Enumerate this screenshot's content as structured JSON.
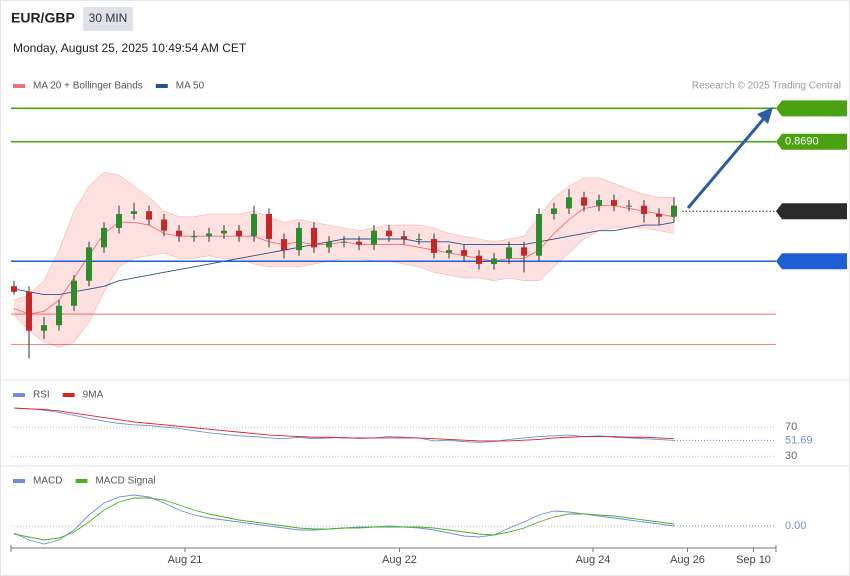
{
  "header": {
    "symbol": "EUR/GBP",
    "timeframe": "30 MIN",
    "datetime": "Monday, August 25, 2025 10:49:54 AM CET"
  },
  "chart_data": [
    {
      "type": "candlestick",
      "annotation": "Research © 2025 Trading Central",
      "up_color": "#2e8b2e",
      "down_color": "#c62828",
      "ylim": [
        0.8605,
        0.8714
      ],
      "open": [
        0.8638,
        0.8636,
        0.8622,
        0.8624,
        0.8631,
        0.864,
        0.8652,
        0.8659,
        0.8664,
        0.8665,
        0.8662,
        0.8658,
        0.8656,
        0.8656,
        0.8657,
        0.8658,
        0.8656,
        0.8664,
        0.8655,
        0.8651,
        0.8659,
        0.8652,
        0.8654,
        0.8654,
        0.8653,
        0.8658,
        0.8656,
        0.8655,
        0.8655,
        0.865,
        0.8651,
        0.8649,
        0.8646,
        0.8648,
        0.8652,
        0.8649,
        0.8664,
        0.8666,
        0.867,
        0.8667,
        0.8669,
        0.8667,
        0.8667,
        0.8664,
        0.8663
      ],
      "high": [
        0.864,
        0.8638,
        0.8627,
        0.8633,
        0.8642,
        0.8654,
        0.8661,
        0.8667,
        0.8668,
        0.8667,
        0.8664,
        0.866,
        0.8658,
        0.8659,
        0.866,
        0.866,
        0.8667,
        0.8666,
        0.8657,
        0.8661,
        0.8661,
        0.8656,
        0.8656,
        0.8656,
        0.866,
        0.866,
        0.8658,
        0.8657,
        0.8657,
        0.8653,
        0.8653,
        0.8651,
        0.865,
        0.8654,
        0.8654,
        0.8666,
        0.8668,
        0.8673,
        0.8672,
        0.8671,
        0.8671,
        0.8669,
        0.8669,
        0.8666,
        0.867
      ],
      "low": [
        0.8635,
        0.8612,
        0.8619,
        0.8622,
        0.8629,
        0.8638,
        0.865,
        0.8657,
        0.8662,
        0.866,
        0.8656,
        0.8654,
        0.8654,
        0.8654,
        0.8655,
        0.8654,
        0.8654,
        0.8652,
        0.8648,
        0.8649,
        0.865,
        0.865,
        0.8652,
        0.8651,
        0.8651,
        0.8654,
        0.8653,
        0.8653,
        0.8648,
        0.8648,
        0.8647,
        0.8644,
        0.8644,
        0.8646,
        0.8643,
        0.8647,
        0.8662,
        0.8664,
        0.8665,
        0.8665,
        0.8665,
        0.8665,
        0.8661,
        0.866,
        0.8661
      ],
      "close": [
        0.8636,
        0.8622,
        0.8624,
        0.8631,
        0.864,
        0.8652,
        0.8659,
        0.8664,
        0.8665,
        0.8662,
        0.8658,
        0.8656,
        0.8656,
        0.8657,
        0.8658,
        0.8656,
        0.8664,
        0.8655,
        0.8651,
        0.8659,
        0.8652,
        0.8654,
        0.8654,
        0.8653,
        0.8658,
        0.8656,
        0.8655,
        0.8655,
        0.865,
        0.8651,
        0.8649,
        0.8646,
        0.8648,
        0.8652,
        0.8649,
        0.8664,
        0.8666,
        0.867,
        0.8667,
        0.8669,
        0.8667,
        0.8667,
        0.8664,
        0.8663,
        0.8667
      ],
      "series": [
        {
          "name": "MA 20 + Bollinger Bands",
          "color": "#f07070",
          "band_color": "#fde0e0",
          "values": [
            0.863,
            0.8628,
            0.8629,
            0.8633,
            0.8641,
            0.8649,
            0.8657,
            0.8661,
            0.8661,
            0.866,
            0.8657,
            0.8656,
            0.8656,
            0.8656,
            0.8656,
            0.8656,
            0.8656,
            0.8654,
            0.8653,
            0.8654,
            0.8653,
            0.8653,
            0.8654,
            0.8653,
            0.8653,
            0.8653,
            0.8653,
            0.8652,
            0.8651,
            0.865,
            0.8649,
            0.8648,
            0.8647,
            0.8648,
            0.8648,
            0.8651,
            0.8657,
            0.8662,
            0.8666,
            0.8667,
            0.8667,
            0.8666,
            0.8665,
            0.8664,
            0.8663
          ],
          "upper": [
            0.8633,
            0.8635,
            0.864,
            0.8651,
            0.8665,
            0.8674,
            0.8679,
            0.8678,
            0.8674,
            0.867,
            0.8665,
            0.8663,
            0.8663,
            0.8664,
            0.8664,
            0.8664,
            0.8665,
            0.8663,
            0.8661,
            0.8662,
            0.8661,
            0.866,
            0.8659,
            0.8658,
            0.8659,
            0.866,
            0.866,
            0.866,
            0.8659,
            0.8657,
            0.8656,
            0.8655,
            0.8654,
            0.8655,
            0.8656,
            0.8663,
            0.867,
            0.8674,
            0.8677,
            0.8677,
            0.8675,
            0.8673,
            0.8671,
            0.867,
            0.867
          ],
          "lower": [
            0.8628,
            0.8622,
            0.8618,
            0.8616,
            0.8618,
            0.8625,
            0.8636,
            0.8645,
            0.8648,
            0.8649,
            0.865,
            0.8648,
            0.8648,
            0.8649,
            0.8648,
            0.8648,
            0.8646,
            0.8645,
            0.8645,
            0.8645,
            0.8646,
            0.8647,
            0.8648,
            0.8648,
            0.8647,
            0.8647,
            0.8646,
            0.8645,
            0.8643,
            0.8642,
            0.8641,
            0.8641,
            0.864,
            0.8641,
            0.864,
            0.864,
            0.8645,
            0.865,
            0.8655,
            0.8658,
            0.8659,
            0.8659,
            0.8659,
            0.8658,
            0.8657
          ]
        },
        {
          "name": "MA 50",
          "color": "#2d4f8a",
          "values": [
            0.8637,
            0.8636,
            0.8635,
            0.8635,
            0.8636,
            0.8637,
            0.8638,
            0.864,
            0.8641,
            0.8642,
            0.8643,
            0.8644,
            0.8645,
            0.8646,
            0.8647,
            0.8648,
            0.8649,
            0.865,
            0.8651,
            0.8652,
            0.8653,
            0.8654,
            0.8655,
            0.8655,
            0.8655,
            0.8655,
            0.8655,
            0.8654,
            0.8654,
            0.8654,
            0.8653,
            0.8653,
            0.8653,
            0.8653,
            0.8653,
            0.8654,
            0.8655,
            0.8656,
            0.8657,
            0.8658,
            0.8658,
            0.8659,
            0.866,
            0.866,
            0.8661
          ]
        }
      ],
      "levels": [
        {
          "value": 0.8702,
          "color": "#4aa010",
          "boxed": true
        },
        {
          "value": 0.869,
          "label": "0.8690",
          "color": "#4aa010",
          "boxed": true
        },
        {
          "value": 0.8665,
          "color": "#2b2b2b",
          "boxed": true,
          "dotted": true
        },
        {
          "value": 0.8647,
          "color": "#1f5fd6",
          "boxed": true
        },
        {
          "value": 0.8628,
          "color": "#d62020",
          "boxed": false
        },
        {
          "value": 0.8617,
          "color": "#d62020",
          "boxed": false
        }
      ]
    },
    {
      "type": "line",
      "ylim": [
        18,
        107
      ],
      "yticks": [
        70,
        30
      ],
      "series": [
        {
          "name": "RSI",
          "color": "#6f8fd8",
          "values": [
            96,
            95,
            93,
            90,
            86,
            82,
            78,
            75,
            73,
            72,
            70,
            68,
            65,
            62,
            60,
            58,
            57,
            55,
            54,
            56,
            54,
            55,
            56,
            54,
            55,
            57,
            56,
            55,
            51,
            52,
            50,
            49,
            50,
            53,
            55,
            57,
            58,
            59,
            57,
            58,
            56,
            55,
            54,
            53,
            51.69
          ]
        },
        {
          "name": "9MA",
          "color": "#e02020",
          "values": [
            96,
            95,
            94,
            92,
            89,
            86,
            83,
            80,
            77,
            75,
            73,
            71,
            69,
            67,
            65,
            63,
            61,
            59,
            58,
            57,
            56,
            56,
            55,
            55,
            55,
            55,
            55,
            55,
            54,
            53,
            52,
            51,
            51,
            51,
            52,
            53,
            55,
            56,
            57,
            57,
            57,
            56,
            56,
            55,
            54
          ]
        }
      ]
    },
    {
      "type": "line",
      "ylim": [
        -0.00022,
        0.00051
      ],
      "yticks": [
        {
          "value": 0,
          "label": "0.00"
        }
      ],
      "series": [
        {
          "name": "MACD",
          "color": "#6f8fd8",
          "values": [
            -7e-05,
            -0.00014,
            -0.00018,
            -0.00014,
            -4e-05,
            0.00011,
            0.00023,
            0.00029,
            0.00031,
            0.00029,
            0.00023,
            0.00016,
            0.00011,
            8e-05,
            6e-05,
            4e-05,
            2e-05,
            0,
            -2e-05,
            -4e-05,
            -4e-05,
            -3e-05,
            -2e-05,
            -1e-05,
            -1e-05,
            0,
            -1e-05,
            -2e-05,
            -4e-05,
            -7e-05,
            -0.0001,
            -0.00011,
            -9e-05,
            -2e-05,
            4e-05,
            0.00011,
            0.00015,
            0.00014,
            0.00012,
            0.0001,
            8e-05,
            6e-05,
            4e-05,
            2e-05,
            0
          ]
        },
        {
          "name": "MACD Signal",
          "color": "#4caf20",
          "values": [
            -8e-05,
            -0.00011,
            -0.00014,
            -0.00012,
            -6e-05,
            4e-05,
            0.00016,
            0.00024,
            0.00028,
            0.00028,
            0.00026,
            0.00021,
            0.00016,
            0.00012,
            9e-05,
            6e-05,
            4e-05,
            2e-05,
            0,
            -2e-05,
            -3e-05,
            -3e-05,
            -2e-05,
            -2e-05,
            -1e-05,
            -1e-05,
            -1e-05,
            -1e-05,
            -2e-05,
            -4e-05,
            -6e-05,
            -8e-05,
            -9e-05,
            -6e-05,
            -2e-05,
            4e-05,
            9e-05,
            0.00012,
            0.00012,
            0.00011,
            0.0001,
            8e-05,
            6e-05,
            4e-05,
            2e-05
          ]
        }
      ],
      "xticks": [
        {
          "value": 11.4,
          "label": "Aug 21"
        },
        {
          "value": 25.7,
          "label": "Aug 22"
        },
        {
          "value": 38.6,
          "label": "Aug 24"
        },
        {
          "value": 44.9,
          "label": "Aug 26"
        },
        {
          "value": 49.3,
          "label": "Sep 10"
        }
      ]
    }
  ]
}
